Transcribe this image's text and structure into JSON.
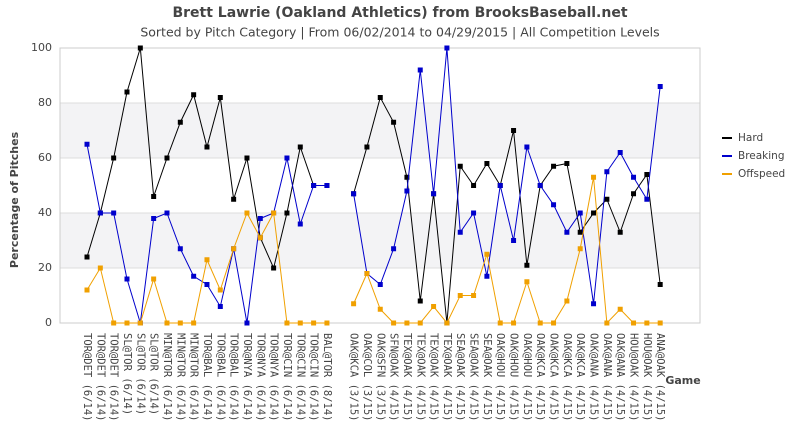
{
  "chart_data": {
    "type": "line",
    "title": "Brett Lawrie (Oakland Athletics) from BrooksBaseball.net",
    "subtitle": "Sorted by Pitch Category | From 06/02/2014 to 04/29/2015 | All Competition Levels",
    "y_label": "Percentage of Pitches",
    "x_label": "Game",
    "categories": [
      "TOR@DET (6/14)",
      "TOR@DET (6/14)",
      "TOR@DET (6/14)",
      "SL@TOR (6/14)",
      "SL@TOR (6/14)",
      "SL@TOR (6/14)",
      "MIN@TOR (6/14)",
      "MIN@TOR (6/14)",
      "MIN@TOR (6/14)",
      "TOR@BAL (6/14)",
      "TOR@BAL (6/14)",
      "TOR@BAL (6/14)",
      "TOR@NYA (6/14)",
      "TOR@NYA (6/14)",
      "TOR@NYA (6/14)",
      "TOR@CIN (6/14)",
      "TOR@CIN (6/14)",
      "TOR@CIN (6/14)",
      "BAL@TOR (8/14)",
      null,
      "OAK@KCA (3/15)",
      "OAK@COL (3/15)",
      "OAK@SFN (3/15)",
      "SFN@OAK (4/15)",
      "TEX@OAK (4/15)",
      "TEX@OAK (4/15)",
      "TEX@OAK (4/15)",
      "TEX@OAK (4/15)",
      "SEA@OAK (4/15)",
      "SEA@OAK (4/15)",
      "SEA@OAK (4/15)",
      "OAK@HOU (4/15)",
      "OAK@HOU (4/15)",
      "OAK@HOU (4/15)",
      "OAK@KCA (4/15)",
      "OAK@KCA (4/15)",
      "OAK@KCA (4/15)",
      "OAK@KCA (4/15)",
      "OAK@ANA (4/15)",
      "OAK@ANA (4/15)",
      "OAK@ANA (4/15)",
      "HOU@OAK (4/15)",
      "HOU@OAK (4/15)",
      "ANA@OAK (4/15)"
    ],
    "series": [
      {
        "name": "Hard",
        "color": "#000000",
        "values": [
          24,
          40,
          60,
          84,
          100,
          46,
          60,
          73,
          83,
          64,
          82,
          45,
          60,
          31,
          20,
          40,
          64,
          50,
          50,
          null,
          47,
          64,
          82,
          73,
          53,
          8,
          47,
          0,
          57,
          50,
          58,
          50,
          70,
          21,
          50,
          57,
          58,
          33,
          40,
          45,
          33,
          47,
          54,
          14
        ]
      },
      {
        "name": "Breaking",
        "color": "#0000cc",
        "values": [
          65,
          40,
          40,
          16,
          0,
          38,
          40,
          27,
          17,
          14,
          6,
          27,
          0,
          38,
          40,
          60,
          36,
          50,
          50,
          null,
          47,
          18,
          14,
          27,
          48,
          92,
          47,
          100,
          33,
          40,
          17,
          50,
          30,
          64,
          50,
          43,
          33,
          40,
          7,
          55,
          62,
          53,
          45,
          86
        ]
      },
      {
        "name": "Offspeed",
        "color": "#f0a000",
        "values": [
          12,
          20,
          0,
          0,
          0,
          16,
          0,
          0,
          0,
          23,
          12,
          27,
          40,
          31,
          40,
          0,
          0,
          0,
          0,
          null,
          7,
          18,
          5,
          0,
          0,
          0,
          6,
          0,
          10,
          10,
          25,
          0,
          0,
          15,
          0,
          0,
          8,
          27,
          53,
          0,
          5,
          0,
          0,
          0
        ]
      }
    ],
    "ylim": [
      0,
      100
    ],
    "yticks": [
      0,
      20,
      40,
      60,
      80,
      100
    ],
    "grid": true,
    "legend": "right"
  }
}
